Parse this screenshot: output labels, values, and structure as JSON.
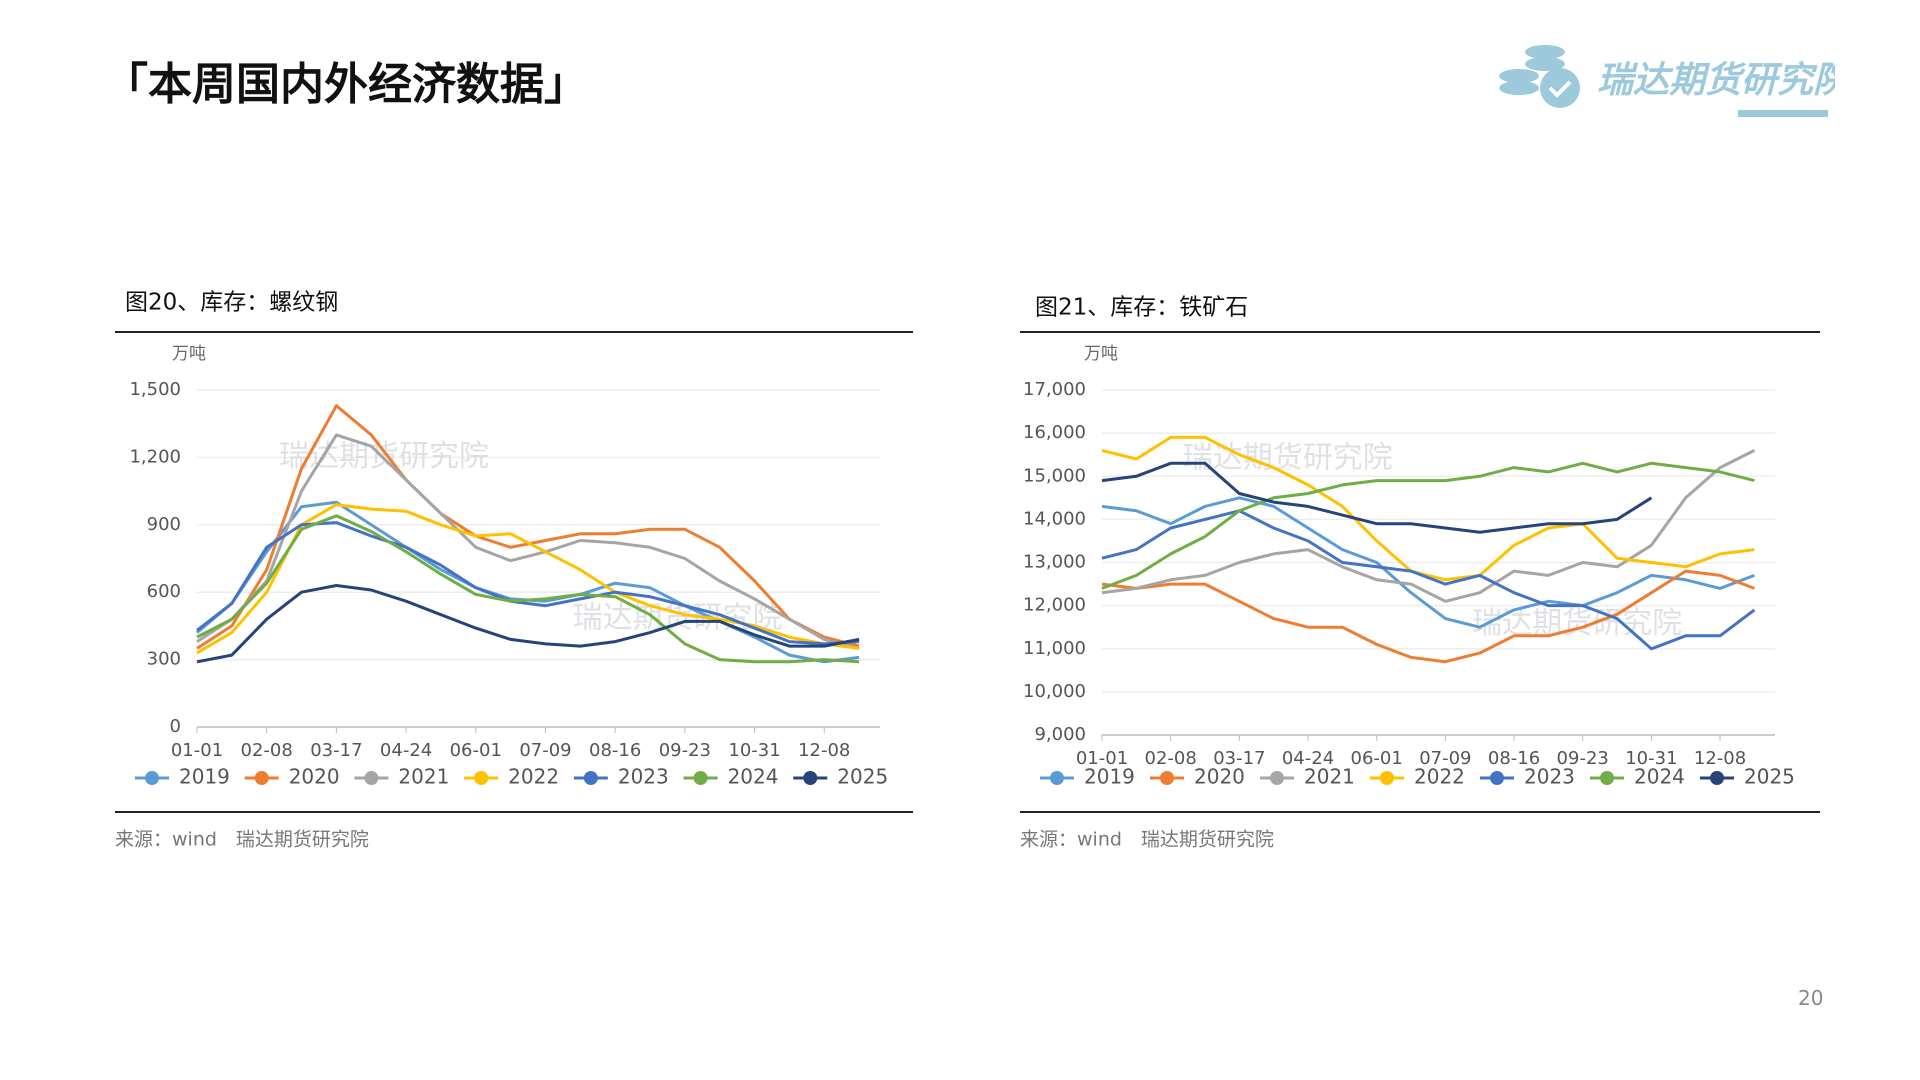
{
  "header": {
    "title": "「本周国内外经济数据」",
    "logo": "瑞达期货研究院"
  },
  "page_number": "20",
  "chart_data": [
    {
      "type": "line",
      "title": "图20、库存：螺纹钢",
      "y_label": "万吨",
      "watermark": [
        "瑞达期货研究院",
        "瑞达期货研究院"
      ],
      "source": "来源：wind　瑞达期货研究院",
      "categories": [
        "01-01",
        null,
        "02-08",
        null,
        "03-17",
        null,
        "04-24",
        null,
        "06-01",
        null,
        "07-09",
        null,
        "08-16",
        null,
        "09-23",
        null,
        "10-31",
        null,
        "12-08",
        null
      ],
      "ylim": [
        0,
        1500
      ],
      "yticks": [
        0,
        300,
        600,
        900,
        {
          "value": 1200,
          "label": "1,200"
        },
        {
          "value": 1500,
          "label": "1,500"
        }
      ],
      "grid": true,
      "series": [
        {
          "name": "2019",
          "color": "#5b9bd5",
          "values": [
            420,
            550,
            780,
            980,
            1000,
            900,
            800,
            700,
            620,
            570,
            560,
            590,
            640,
            620,
            540,
            470,
            400,
            320,
            290,
            310
          ]
        },
        {
          "name": "2020",
          "color": "#ed7d31",
          "values": [
            350,
            450,
            700,
            1150,
            1430,
            1300,
            1100,
            950,
            850,
            800,
            830,
            860,
            860,
            880,
            880,
            800,
            650,
            480,
            400,
            360
          ]
        },
        {
          "name": "2021",
          "color": "#a5a5a5",
          "values": [
            380,
            480,
            650,
            1050,
            1300,
            1250,
            1100,
            950,
            800,
            740,
            780,
            830,
            820,
            800,
            750,
            650,
            570,
            480,
            390,
            350
          ]
        },
        {
          "name": "2022",
          "color": "#ffc000",
          "values": [
            330,
            420,
            600,
            900,
            990,
            970,
            960,
            900,
            850,
            860,
            780,
            700,
            600,
            540,
            500,
            480,
            450,
            400,
            370,
            350
          ]
        },
        {
          "name": "2023",
          "color": "#4472c4",
          "values": [
            430,
            550,
            800,
            900,
            910,
            850,
            800,
            720,
            620,
            560,
            540,
            570,
            600,
            580,
            540,
            500,
            440,
            380,
            370,
            380
          ]
        },
        {
          "name": "2024",
          "color": "#70ad47",
          "values": [
            400,
            480,
            640,
            880,
            940,
            870,
            780,
            680,
            590,
            560,
            570,
            590,
            580,
            500,
            370,
            300,
            290,
            290,
            300,
            290
          ]
        },
        {
          "name": "2025",
          "color": "#264478",
          "values": [
            290,
            320,
            480,
            600,
            630,
            610,
            560,
            500,
            440,
            390,
            370,
            360,
            380,
            420,
            470,
            470,
            410,
            360,
            360,
            390
          ]
        }
      ]
    },
    {
      "type": "line",
      "title": "图21、库存：铁矿石",
      "y_label": "万吨",
      "watermark": [
        "瑞达期货研究院",
        "瑞达期货研究院"
      ],
      "source": "来源：wind　瑞达期货研究院",
      "categories": [
        "01-01",
        null,
        "02-08",
        null,
        "03-17",
        null,
        "04-24",
        null,
        "06-01",
        null,
        "07-09",
        null,
        "08-16",
        null,
        "09-23",
        null,
        "10-31",
        null,
        "12-08",
        null
      ],
      "ylim": [
        9000,
        17000
      ],
      "yticks": [
        {
          "value": 9000,
          "label": "9,000"
        },
        {
          "value": 10000,
          "label": "10,000"
        },
        {
          "value": 11000,
          "label": "11,000"
        },
        {
          "value": 12000,
          "label": "12,000"
        },
        {
          "value": 13000,
          "label": "13,000"
        },
        {
          "value": 14000,
          "label": "14,000"
        },
        {
          "value": 15000,
          "label": "15,000"
        },
        {
          "value": 16000,
          "label": "16,000"
        },
        {
          "value": 17000,
          "label": "17,000"
        }
      ],
      "grid": true,
      "series": [
        {
          "name": "2019",
          "color": "#5b9bd5",
          "values": [
            14300,
            14200,
            13900,
            14300,
            14500,
            14300,
            13800,
            13300,
            13000,
            12300,
            11700,
            11500,
            11900,
            12100,
            12000,
            12300,
            12700,
            12600,
            12400,
            12700
          ]
        },
        {
          "name": "2020",
          "color": "#ed7d31",
          "values": [
            12500,
            12400,
            12500,
            12500,
            12100,
            11700,
            11500,
            11500,
            11100,
            10800,
            10700,
            10900,
            11300,
            11300,
            11500,
            11800,
            12300,
            12800,
            12700,
            12400
          ]
        },
        {
          "name": "2021",
          "color": "#a5a5a5",
          "values": [
            12300,
            12400,
            12600,
            12700,
            13000,
            13200,
            13300,
            12900,
            12600,
            12500,
            12100,
            12300,
            12800,
            12700,
            13000,
            12900,
            13400,
            14500,
            15200,
            15600
          ]
        },
        {
          "name": "2022",
          "color": "#ffc000",
          "values": [
            15600,
            15400,
            15900,
            15900,
            15500,
            15200,
            14800,
            14300,
            13500,
            12800,
            12600,
            12700,
            13400,
            13800,
            13900,
            13100,
            13000,
            12900,
            13200,
            13300
          ]
        },
        {
          "name": "2023",
          "color": "#4472c4",
          "values": [
            13100,
            13300,
            13800,
            14000,
            14200,
            13800,
            13500,
            13000,
            12900,
            12800,
            12500,
            12700,
            12300,
            12000,
            12000,
            11700,
            11000,
            11300,
            11300,
            11900
          ]
        },
        {
          "name": "2024",
          "color": "#70ad47",
          "values": [
            12400,
            12700,
            13200,
            13600,
            14200,
            14500,
            14600,
            14800,
            14900,
            14900,
            14900,
            15000,
            15200,
            15100,
            15300,
            15100,
            15300,
            15200,
            15100,
            14900
          ]
        },
        {
          "name": "2025",
          "color": "#264478",
          "values": [
            14900,
            15000,
            15300,
            15300,
            14600,
            14400,
            14300,
            14100,
            13900,
            13900,
            13800,
            13700,
            13800,
            13900,
            13900,
            14000,
            14500,
            null,
            null,
            null
          ]
        }
      ]
    }
  ]
}
